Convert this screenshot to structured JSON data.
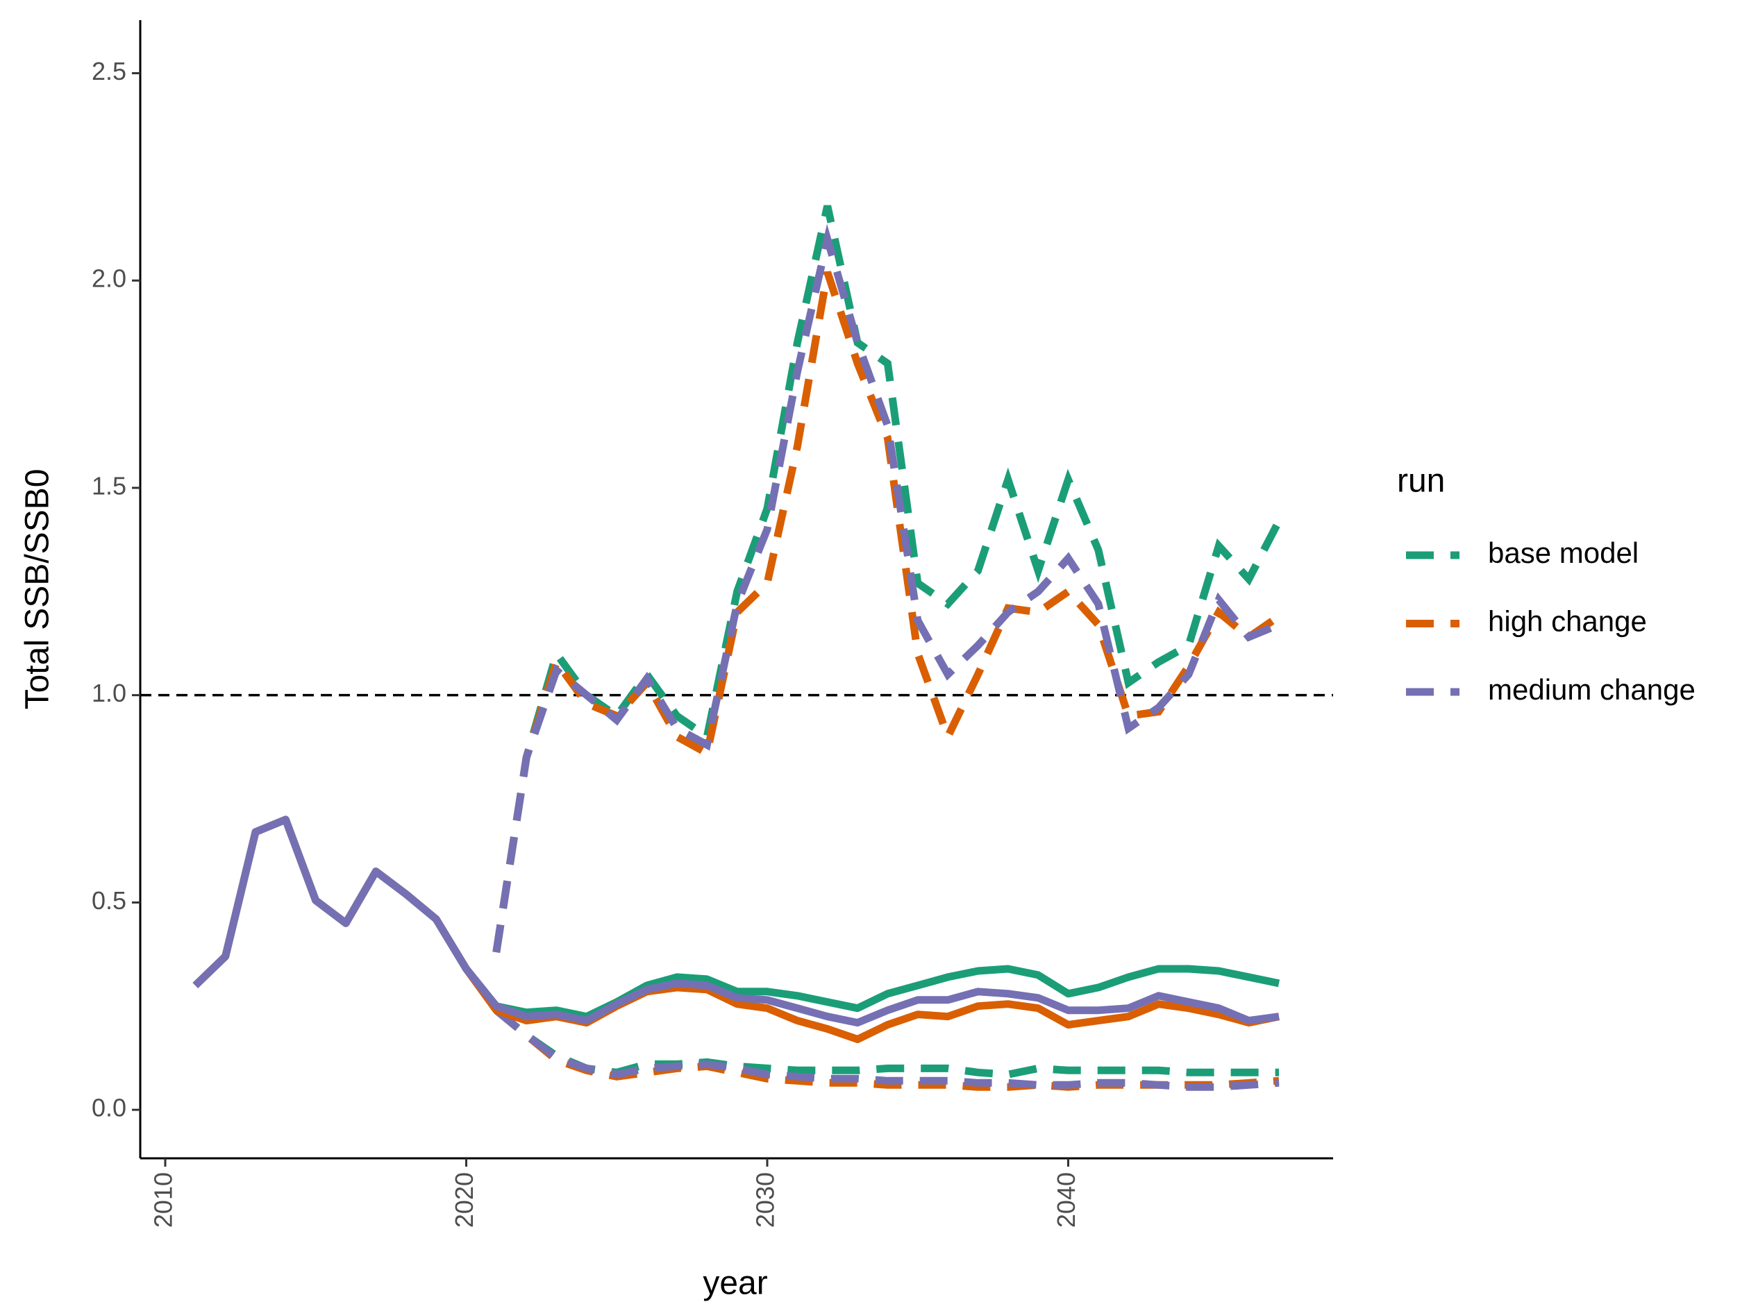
{
  "chart_data": {
    "type": "line",
    "x_label": "year",
    "y_label": "Total SSB/SSB0",
    "legend_title": "run",
    "legend_position": "right",
    "grid": false,
    "reference_line": 1,
    "x": [
      2011,
      2012,
      2013,
      2014,
      2015,
      2016,
      2017,
      2018,
      2019,
      2020,
      2021,
      2022,
      2023,
      2024,
      2025,
      2026,
      2027,
      2028,
      2029,
      2030,
      2031,
      2032,
      2033,
      2034,
      2035,
      2036,
      2037,
      2038,
      2039,
      2040,
      2041,
      2042,
      2043,
      2044,
      2045,
      2046,
      2047
    ],
    "xlim": [
      2009.17,
      2048.8
    ],
    "xticks": [
      2010,
      2020,
      2030,
      2040
    ],
    "ylim": [
      -0.117,
      2.628
    ],
    "yticks": [
      {
        "value": 0,
        "label": "0.0"
      },
      0.5,
      {
        "value": 1,
        "label": "1.0"
      },
      1.5,
      {
        "value": 2,
        "label": "2.0"
      },
      2.5
    ],
    "series": [
      {
        "name": "base model",
        "color": "#1b9e77",
        "values": [
          0.3,
          0.37,
          0.67,
          0.7,
          0.505,
          0.45,
          0.575,
          0.52,
          0.46,
          0.34,
          0.25,
          0.235,
          0.24,
          0.225,
          0.26,
          0.3,
          0.32,
          0.315,
          0.285,
          0.285,
          0.275,
          0.26,
          0.245,
          0.28,
          0.3,
          0.32,
          0.335,
          0.34,
          0.325,
          0.28,
          0.295,
          0.32,
          0.34,
          0.34,
          0.335,
          0.32,
          0.305
        ],
        "upper": [
          null,
          null,
          null,
          null,
          null,
          null,
          null,
          null,
          null,
          null,
          0.38,
          0.85,
          1.1,
          1.0,
          0.95,
          1.05,
          0.95,
          0.9,
          1.25,
          1.45,
          1.85,
          2.18,
          1.85,
          1.8,
          1.27,
          1.22,
          1.3,
          1.52,
          1.3,
          1.52,
          1.35,
          1.03,
          1.08,
          1.12,
          1.36,
          1.28,
          1.42
        ],
        "lower": [
          null,
          null,
          null,
          null,
          null,
          null,
          null,
          null,
          null,
          null,
          0.24,
          0.18,
          0.13,
          0.1,
          0.09,
          0.11,
          0.11,
          0.115,
          0.105,
          0.1,
          0.095,
          0.095,
          0.095,
          0.1,
          0.1,
          0.1,
          0.09,
          0.085,
          0.1,
          0.095,
          0.095,
          0.095,
          0.095,
          0.09,
          0.09,
          0.09,
          0.09
        ]
      },
      {
        "name": "high change",
        "color": "#d95f02",
        "values": [
          0.3,
          0.37,
          0.67,
          0.7,
          0.505,
          0.45,
          0.575,
          0.52,
          0.46,
          0.34,
          0.24,
          0.215,
          0.225,
          0.21,
          0.25,
          0.285,
          0.295,
          0.29,
          0.255,
          0.245,
          0.215,
          0.195,
          0.17,
          0.205,
          0.23,
          0.225,
          0.25,
          0.255,
          0.245,
          0.205,
          0.215,
          0.225,
          0.255,
          0.245,
          0.23,
          0.21,
          0.225
        ],
        "upper": [
          null,
          null,
          null,
          null,
          null,
          null,
          null,
          null,
          null,
          null,
          0.38,
          0.85,
          1.08,
          0.98,
          0.95,
          1.03,
          0.9,
          0.86,
          1.2,
          1.27,
          1.6,
          2.02,
          1.8,
          1.62,
          1.1,
          0.9,
          1.05,
          1.21,
          1.2,
          1.25,
          1.17,
          0.95,
          0.96,
          1.07,
          1.2,
          1.14,
          1.19
        ],
        "lower": [
          null,
          null,
          null,
          null,
          null,
          null,
          null,
          null,
          null,
          null,
          0.24,
          0.18,
          0.12,
          0.095,
          0.08,
          0.09,
          0.1,
          0.105,
          0.09,
          0.075,
          0.07,
          0.065,
          0.065,
          0.06,
          0.06,
          0.06,
          0.055,
          0.055,
          0.06,
          0.055,
          0.06,
          0.06,
          0.06,
          0.06,
          0.06,
          0.065,
          0.07
        ]
      },
      {
        "name": "medium change",
        "color": "#7570b3",
        "values": [
          0.3,
          0.37,
          0.67,
          0.7,
          0.505,
          0.45,
          0.575,
          0.52,
          0.46,
          0.34,
          0.25,
          0.225,
          0.23,
          0.215,
          0.255,
          0.29,
          0.305,
          0.3,
          0.27,
          0.265,
          0.245,
          0.225,
          0.21,
          0.24,
          0.265,
          0.265,
          0.285,
          0.28,
          0.27,
          0.24,
          0.24,
          0.245,
          0.275,
          0.26,
          0.245,
          0.215,
          0.225
        ],
        "upper": [
          null,
          null,
          null,
          null,
          null,
          null,
          null,
          null,
          null,
          null,
          0.38,
          0.85,
          1.06,
          1.0,
          0.94,
          1.04,
          0.92,
          0.88,
          1.22,
          1.4,
          1.78,
          2.1,
          1.85,
          1.65,
          1.18,
          1.05,
          1.12,
          1.2,
          1.25,
          1.33,
          1.22,
          0.92,
          0.97,
          1.05,
          1.23,
          1.14,
          1.17
        ],
        "lower": [
          null,
          null,
          null,
          null,
          null,
          null,
          null,
          null,
          null,
          null,
          0.24,
          0.18,
          0.125,
          0.1,
          0.085,
          0.1,
          0.105,
          0.11,
          0.1,
          0.085,
          0.08,
          0.075,
          0.075,
          0.07,
          0.07,
          0.07,
          0.065,
          0.065,
          0.06,
          0.06,
          0.065,
          0.065,
          0.06,
          0.055,
          0.055,
          0.06,
          0.065
        ]
      }
    ]
  }
}
